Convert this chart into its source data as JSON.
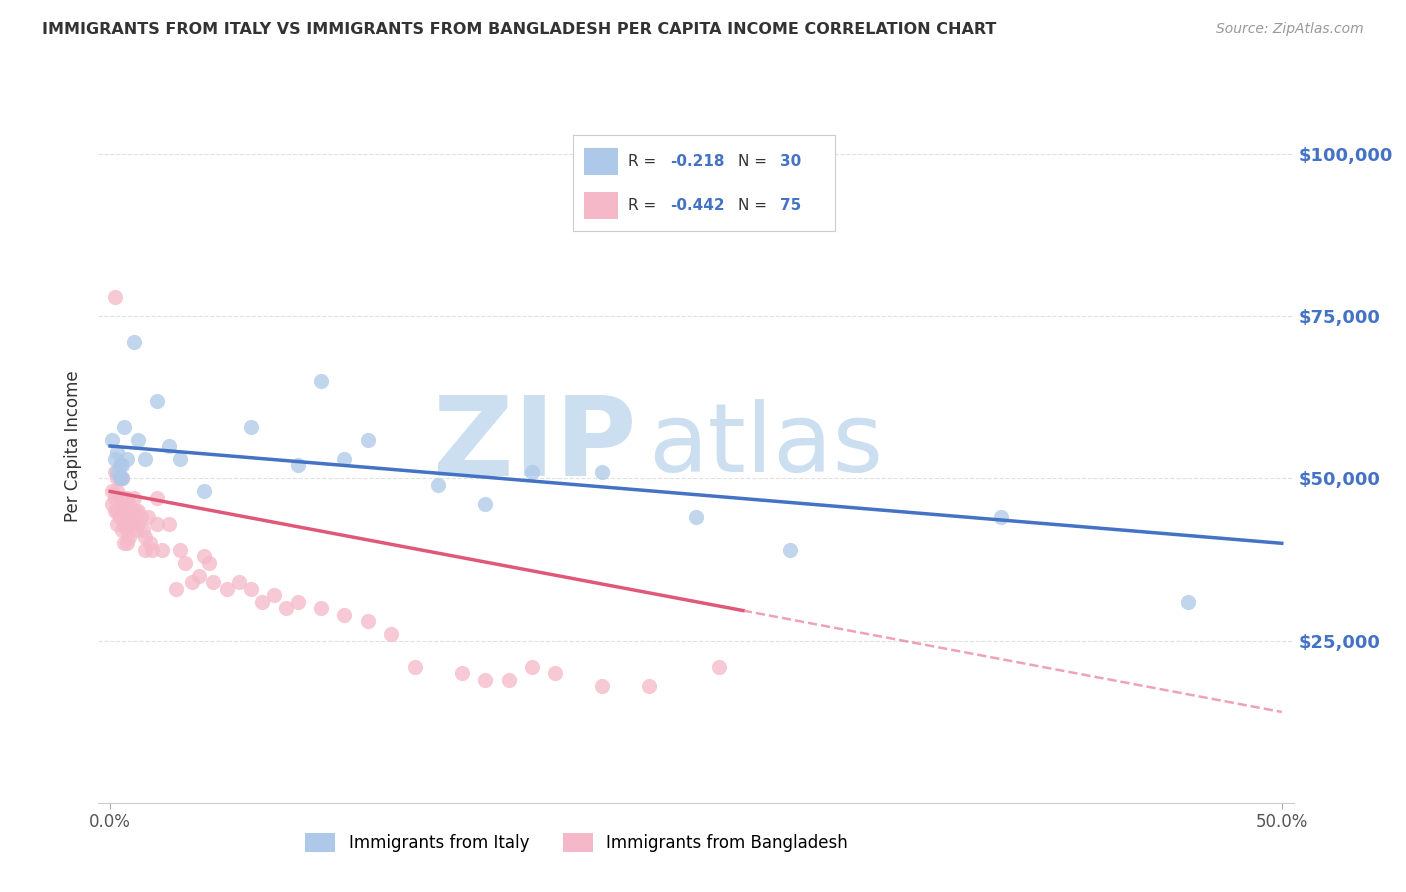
{
  "title": "IMMIGRANTS FROM ITALY VS IMMIGRANTS FROM BANGLADESH PER CAPITA INCOME CORRELATION CHART",
  "source": "Source: ZipAtlas.com",
  "ylabel": "Per Capita Income",
  "xlim": [
    -0.005,
    0.505
  ],
  "ylim": [
    0,
    110000
  ],
  "yticks": [
    0,
    25000,
    50000,
    75000,
    100000
  ],
  "ytick_labels": [
    "",
    "$25,000",
    "$50,000",
    "$75,000",
    "$100,000"
  ],
  "xticks": [
    0.0,
    0.5
  ],
  "xtick_labels": [
    "0.0%",
    "50.0%"
  ],
  "italy_color": "#adc8e8",
  "italy_line_color": "#4472c4",
  "bangladesh_color": "#f5b8c8",
  "bangladesh_line_color": "#e05878",
  "italy_R": -0.218,
  "italy_N": 30,
  "bangladesh_R": -0.442,
  "bangladesh_N": 75,
  "italy_line_x0": 0.0,
  "italy_line_y0": 55000,
  "italy_line_x1": 0.5,
  "italy_line_y1": 40000,
  "bangladesh_line_x0": 0.0,
  "bangladesh_line_y0": 48000,
  "bangladesh_line_solid_end": 0.27,
  "bangladesh_line_x1": 0.5,
  "bangladesh_line_y1": 14000,
  "italy_scatter_x": [
    0.001,
    0.002,
    0.003,
    0.003,
    0.004,
    0.004,
    0.005,
    0.005,
    0.006,
    0.007,
    0.01,
    0.012,
    0.015,
    0.02,
    0.025,
    0.03,
    0.04,
    0.06,
    0.08,
    0.09,
    0.1,
    0.11,
    0.14,
    0.16,
    0.18,
    0.21,
    0.25,
    0.29,
    0.38,
    0.46
  ],
  "italy_scatter_y": [
    56000,
    53000,
    51000,
    54000,
    52000,
    50000,
    52000,
    50000,
    58000,
    53000,
    71000,
    56000,
    53000,
    62000,
    55000,
    53000,
    48000,
    58000,
    52000,
    65000,
    53000,
    56000,
    49000,
    46000,
    51000,
    51000,
    44000,
    39000,
    44000,
    31000
  ],
  "bangladesh_scatter_x": [
    0.001,
    0.001,
    0.002,
    0.002,
    0.002,
    0.003,
    0.003,
    0.003,
    0.003,
    0.004,
    0.004,
    0.004,
    0.005,
    0.005,
    0.005,
    0.005,
    0.006,
    0.006,
    0.006,
    0.006,
    0.007,
    0.007,
    0.007,
    0.007,
    0.008,
    0.008,
    0.008,
    0.009,
    0.009,
    0.01,
    0.01,
    0.011,
    0.011,
    0.012,
    0.012,
    0.013,
    0.014,
    0.015,
    0.015,
    0.016,
    0.018,
    0.02,
    0.02,
    0.022,
    0.025,
    0.028,
    0.03,
    0.032,
    0.035,
    0.038,
    0.04,
    0.042,
    0.044,
    0.05,
    0.055,
    0.06,
    0.065,
    0.07,
    0.075,
    0.08,
    0.09,
    0.1,
    0.11,
    0.12,
    0.13,
    0.15,
    0.16,
    0.17,
    0.18,
    0.19,
    0.21,
    0.23,
    0.26,
    0.002,
    0.017
  ],
  "bangladesh_scatter_y": [
    48000,
    46000,
    51000,
    47000,
    45000,
    50000,
    48000,
    45000,
    43000,
    50000,
    47000,
    44000,
    50000,
    47000,
    45000,
    42000,
    47000,
    45000,
    43000,
    40000,
    47000,
    44000,
    42000,
    40000,
    46000,
    43000,
    41000,
    45000,
    43000,
    47000,
    44000,
    45000,
    42000,
    45000,
    43000,
    44000,
    42000,
    41000,
    39000,
    44000,
    39000,
    47000,
    43000,
    39000,
    43000,
    33000,
    39000,
    37000,
    34000,
    35000,
    38000,
    37000,
    34000,
    33000,
    34000,
    33000,
    31000,
    32000,
    30000,
    31000,
    30000,
    29000,
    28000,
    26000,
    21000,
    20000,
    19000,
    19000,
    21000,
    20000,
    18000,
    18000,
    21000,
    78000,
    40000
  ],
  "watermark_zip": "ZIP",
  "watermark_atlas": "atlas",
  "watermark_color": "#ccdff0",
  "background_color": "#ffffff",
  "grid_color": "#e0e0e0",
  "right_axis_color": "#4472c4",
  "legend_label_italy": "Immigrants from Italy",
  "legend_label_bangladesh": "Immigrants from Bangladesh"
}
